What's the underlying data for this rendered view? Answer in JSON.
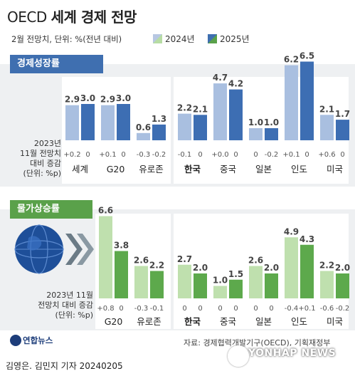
{
  "header": {
    "title_prefix": "OECD",
    "title_main": "세계 경제 전망",
    "subtitle": "2월 전망치, 단위: %(전년 대비)"
  },
  "legend": [
    {
      "label": "2024년",
      "color_light": "#b7c7e2",
      "color_dark": "#b7dca4"
    },
    {
      "label": "2025년",
      "color_light": "#3f6fb0",
      "color_dark": "#5aa14a"
    }
  ],
  "colors": {
    "growth_2024": "#a9bfe0",
    "growth_2025": "#3d6eb3",
    "inflation_2024": "#bfe0ae",
    "inflation_2025": "#5da94c",
    "growth_tab": "#3f6fb0",
    "inflation_tab": "#5aa14a"
  },
  "sections": {
    "growth_title": "경제성장률",
    "inflation_title": "물가상승률",
    "growth_note": [
      "2023년",
      "11월 전망치",
      "대비 증감",
      "(단위: %p)"
    ],
    "inflation_note": [
      "2023년 11월",
      "전망치 대비 증감",
      "(단위: %p)"
    ]
  },
  "chart_data": [
    {
      "type": "bar",
      "title": "경제성장률",
      "categories": [
        "세계",
        "G20",
        "유로존",
        "한국",
        "중국",
        "일본",
        "인도",
        "미국"
      ],
      "series": [
        {
          "name": "2024년",
          "values": [
            2.9,
            2.9,
            0.6,
            2.2,
            4.7,
            1.0,
            6.2,
            2.1
          ]
        },
        {
          "name": "2025년",
          "values": [
            3.0,
            3.0,
            1.3,
            2.1,
            4.2,
            1.0,
            6.5,
            1.7
          ]
        }
      ],
      "change_vs_2023_nov": {
        "2024": [
          "+0.2",
          "+0.1",
          "-0.3",
          "-0.1",
          "+0.0",
          "0",
          "+0.1",
          "+0.6"
        ],
        "2025": [
          "0",
          "0",
          "-0.2",
          "0",
          "0",
          "-0.2",
          "0",
          "0"
        ]
      },
      "ylim": [
        0,
        7
      ]
    },
    {
      "type": "bar",
      "title": "물가상승률",
      "categories": [
        "G20",
        "유로존",
        "한국",
        "중국",
        "일본",
        "인도",
        "미국"
      ],
      "series": [
        {
          "name": "2024년",
          "values": [
            6.6,
            2.6,
            2.7,
            1.0,
            2.6,
            4.9,
            2.2
          ]
        },
        {
          "name": "2025년",
          "values": [
            3.8,
            2.2,
            2.0,
            1.5,
            2.0,
            4.3,
            2.0
          ]
        }
      ],
      "change_vs_2023_nov": {
        "2024": [
          "+0.8",
          "-0.3",
          "0",
          "0",
          "0",
          "-0.4",
          "-0.6"
        ],
        "2025": [
          "0",
          "-0.1",
          "0",
          "0",
          "0",
          "+0.1",
          "-0.2"
        ]
      },
      "ylim": [
        0,
        7
      ]
    }
  ],
  "footer": {
    "source": "자료: 경제협력개발기구(OECD), 기획재정부",
    "logo": "연합뉴스",
    "credit": "김영은. 김민지 기자  20240205",
    "watermark": "YONHAP NEWS"
  }
}
